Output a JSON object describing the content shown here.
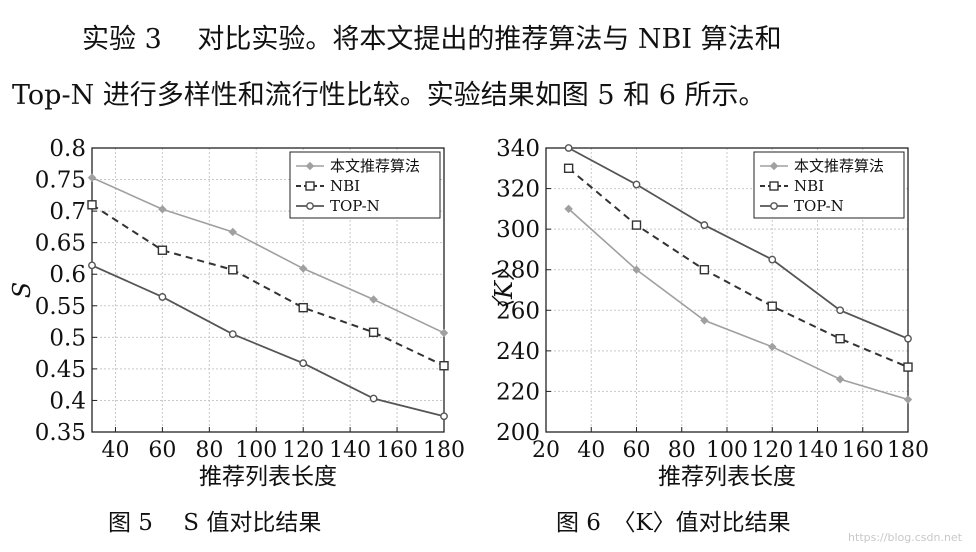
{
  "paragraph": {
    "line1": "实验 3　 对比实验。将本文提出的推荐算法与 NBI 算法和",
    "line2": "Top-N 进行多样性和流行性比较。实验结果如图 5 和 6 所示。"
  },
  "captions": {
    "fig5": "图 5　 S 值对比结果",
    "fig6": "图 6　〈K〉值对比结果"
  },
  "watermark": "https://blog.csdn.net",
  "colors": {
    "algo": "#a0a0a0",
    "nbi": "#333333",
    "topn": "#555555",
    "grid": "#c8c8c8"
  },
  "chart_data": [
    {
      "type": "line",
      "xlabel": "推荐列表长度",
      "ylabel": "S",
      "xlim": [
        30,
        180
      ],
      "ylim": [
        0.35,
        0.8
      ],
      "xticks": [
        40,
        60,
        80,
        100,
        120,
        140,
        160,
        180
      ],
      "yticks": [
        0.35,
        0.4,
        0.45,
        0.5,
        0.55,
        0.6,
        0.65,
        0.7,
        0.75,
        0.8
      ],
      "ytick_labels": [
        "0.35",
        "0.4",
        "0.45",
        "0.5",
        "0.55",
        "0.6",
        "0.65",
        "0.7",
        "0.75",
        "0.8"
      ],
      "grid": true,
      "legend": "top-right",
      "x": [
        30,
        60,
        90,
        120,
        150,
        180
      ],
      "series": [
        {
          "name": "本文推荐算法",
          "values": [
            0.753,
            0.703,
            0.667,
            0.609,
            0.56,
            0.507
          ]
        },
        {
          "name": "NBI",
          "values": [
            0.71,
            0.638,
            0.607,
            0.547,
            0.508,
            0.455
          ]
        },
        {
          "name": "TOP-N",
          "values": [
            0.614,
            0.564,
            0.505,
            0.459,
            0.403,
            0.375
          ]
        }
      ]
    },
    {
      "type": "line",
      "xlabel": "推荐列表长度",
      "ylabel": "〈K〉",
      "xlim": [
        20,
        180
      ],
      "ylim": [
        200,
        340
      ],
      "xticks": [
        20,
        40,
        60,
        80,
        100,
        120,
        140,
        160,
        180
      ],
      "yticks": [
        200,
        220,
        240,
        260,
        280,
        300,
        320,
        340
      ],
      "ytick_labels": [
        "200",
        "220",
        "240",
        "260",
        "280",
        "300",
        "320",
        "340"
      ],
      "grid": true,
      "legend": "top-right",
      "x": [
        30,
        60,
        90,
        120,
        150,
        180
      ],
      "series": [
        {
          "name": "本文推荐算法",
          "values": [
            310,
            280,
            255,
            242,
            226,
            216
          ]
        },
        {
          "name": "NBI",
          "values": [
            330,
            302,
            280,
            262,
            246,
            232
          ]
        },
        {
          "name": "TOP-N",
          "values": [
            340,
            322,
            302,
            285,
            260,
            246
          ]
        }
      ]
    }
  ]
}
